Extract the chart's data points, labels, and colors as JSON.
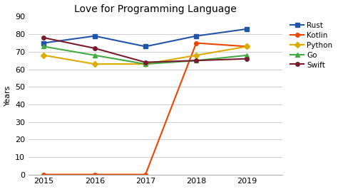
{
  "title": "Love for Programming Language",
  "ylabel": "Years",
  "years": [
    2015,
    2016,
    2017,
    2018,
    2019
  ],
  "series": [
    {
      "name": "Rust",
      "color": "#2255aa",
      "marker": "s",
      "values": [
        75,
        79,
        73,
        79,
        83
      ]
    },
    {
      "name": "Kotlin",
      "color": "#ee4400",
      "marker": "o",
      "values": [
        0,
        0,
        0,
        75,
        73
      ]
    },
    {
      "name": "Python",
      "color": "#ddaa00",
      "marker": "D",
      "values": [
        68,
        63,
        63,
        68,
        73
      ]
    },
    {
      "name": "Go",
      "color": "#44aa44",
      "marker": "^",
      "values": [
        73,
        68,
        63,
        65,
        68
      ]
    },
    {
      "name": "Swift",
      "color": "#7b1c2e",
      "marker": "o",
      "values": [
        78,
        72,
        64,
        65,
        66
      ]
    }
  ],
  "xlim": [
    2014.7,
    2019.7
  ],
  "ylim": [
    0,
    90
  ],
  "yticks": [
    0,
    10,
    20,
    30,
    40,
    50,
    60,
    70,
    80,
    90
  ],
  "xticks": [
    2015,
    2016,
    2017,
    2018,
    2019
  ],
  "background_color": "#ffffff",
  "grid_color": "#d0d0d0"
}
